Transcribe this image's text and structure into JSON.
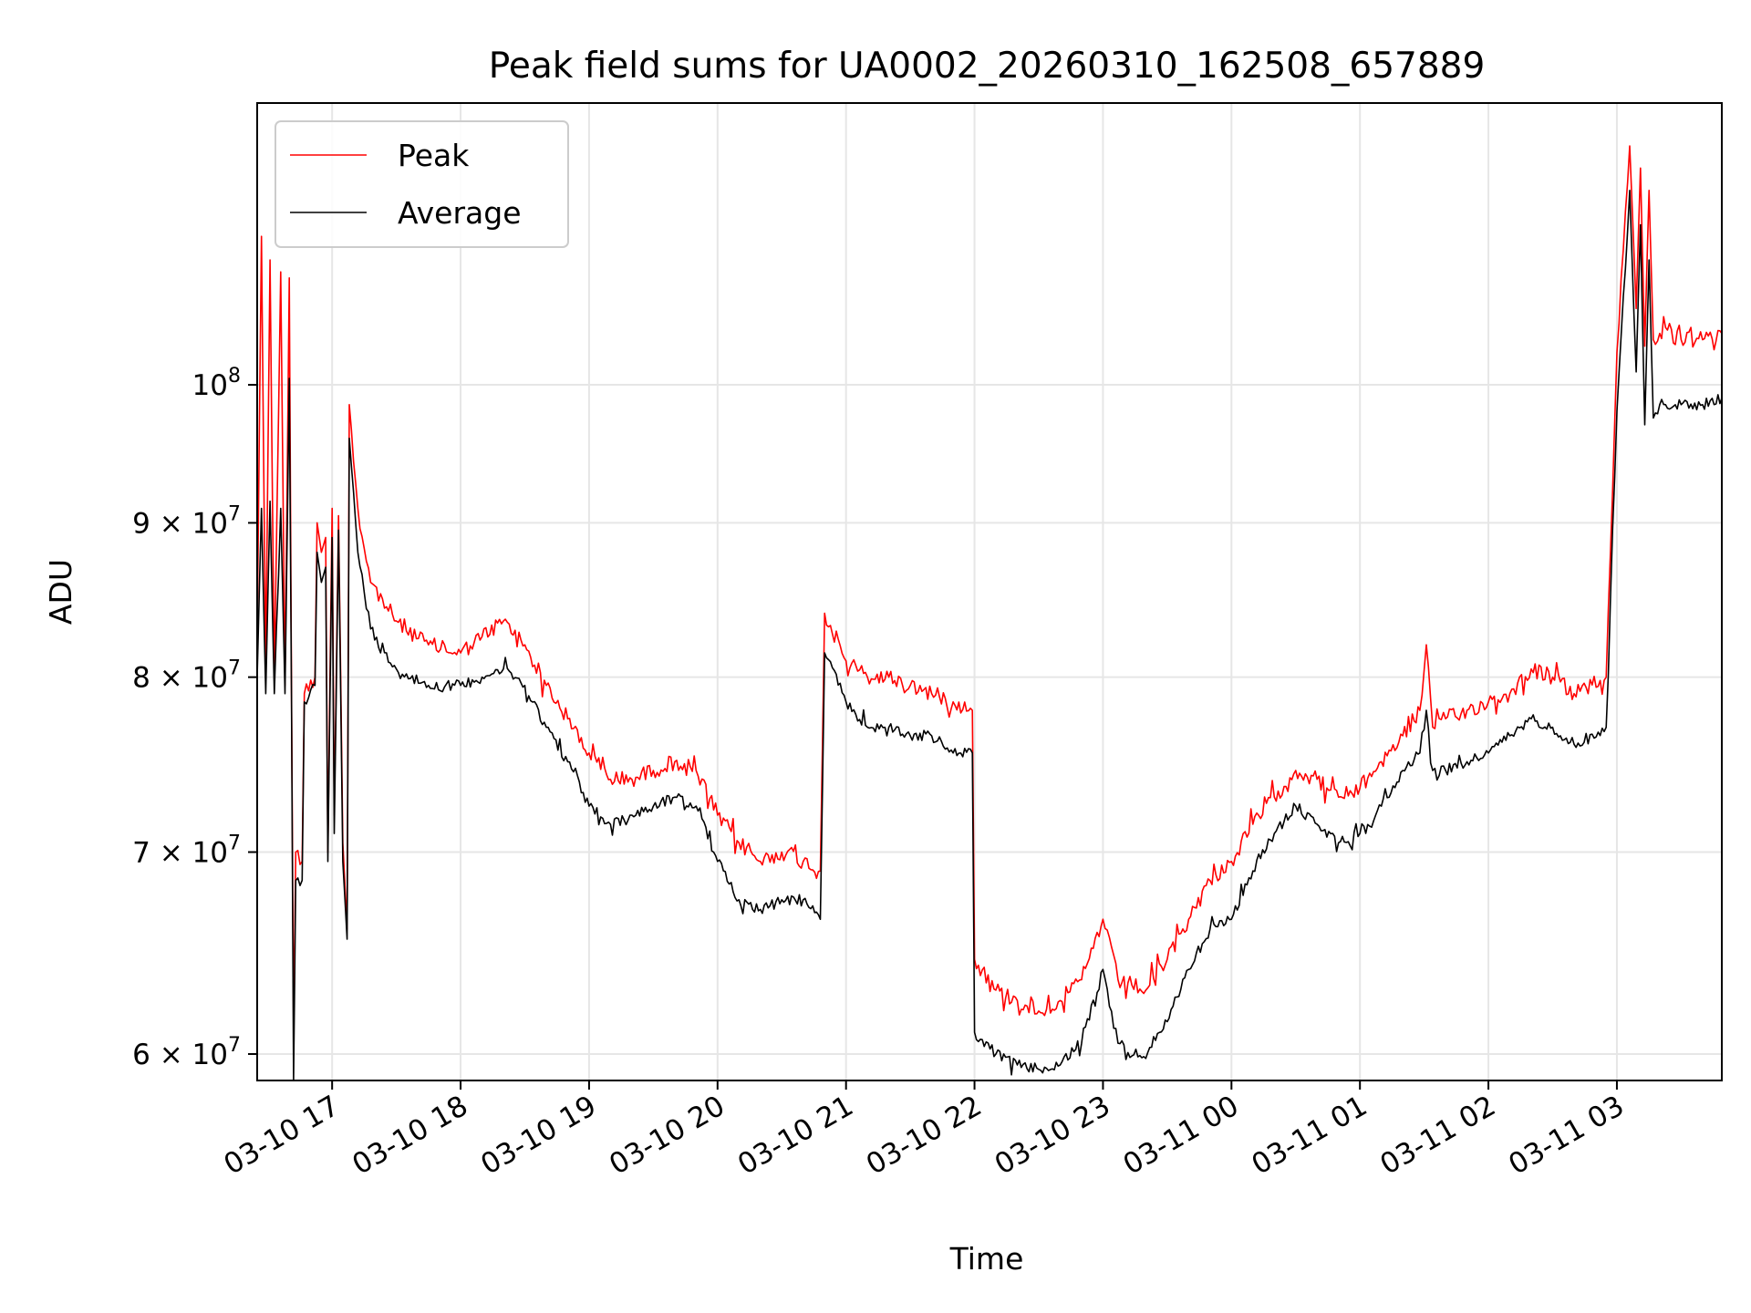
{
  "chart_data": {
    "type": "line",
    "title": "Peak field sums for UA0002_20260310_162508_657889",
    "xlabel": "Time",
    "ylabel": "ADU",
    "y_scale": "log",
    "ylim": [
      58800000,
      124000000
    ],
    "xlim": [
      "2026-03-10 16:25",
      "2026-03-11 03:49"
    ],
    "grid": true,
    "legend": {
      "placement": "upper-left"
    },
    "x_ticks": [
      {
        "value": "2026-03-10 17:00",
        "label": "03-10 17"
      },
      {
        "value": "2026-03-10 18:00",
        "label": "03-10 18"
      },
      {
        "value": "2026-03-10 19:00",
        "label": "03-10 19"
      },
      {
        "value": "2026-03-10 20:00",
        "label": "03-10 20"
      },
      {
        "value": "2026-03-10 21:00",
        "label": "03-10 21"
      },
      {
        "value": "2026-03-10 22:00",
        "label": "03-10 22"
      },
      {
        "value": "2026-03-10 23:00",
        "label": "03-10 23"
      },
      {
        "value": "2026-03-11 00:00",
        "label": "03-11 00"
      },
      {
        "value": "2026-03-11 01:00",
        "label": "03-11 01"
      },
      {
        "value": "2026-03-11 02:00",
        "label": "03-11 02"
      },
      {
        "value": "2026-03-11 03:00",
        "label": "03-11 03"
      }
    ],
    "y_ticks": [
      {
        "value": 60000000,
        "mantissa": "6",
        "exponent": "7"
      },
      {
        "value": 70000000,
        "mantissa": "7",
        "exponent": "7"
      },
      {
        "value": 80000000,
        "mantissa": "8",
        "exponent": "7"
      },
      {
        "value": 90000000,
        "mantissa": "9",
        "exponent": "7"
      },
      {
        "value": 100000000,
        "mantissa": "",
        "exponent": "8"
      }
    ],
    "series": [
      {
        "name": "Peak",
        "color": "#ff0000",
        "points": [
          [
            "2026-03-10 16:25",
            82500000
          ],
          [
            "2026-03-10 16:27",
            112000000
          ],
          [
            "2026-03-10 16:29",
            80500000
          ],
          [
            "2026-03-10 16:31",
            110000000
          ],
          [
            "2026-03-10 16:33",
            80000000
          ],
          [
            "2026-03-10 16:36",
            109000000
          ],
          [
            "2026-03-10 16:38",
            79500000
          ],
          [
            "2026-03-10 16:40",
            108500000
          ],
          [
            "2026-03-10 16:41",
            79500000
          ],
          [
            "2026-03-10 16:42",
            61000000
          ],
          [
            "2026-03-10 16:43",
            70000000
          ],
          [
            "2026-03-10 16:46",
            69500000
          ],
          [
            "2026-03-10 16:47",
            79000000
          ],
          [
            "2026-03-10 16:52",
            80000000
          ],
          [
            "2026-03-10 16:53",
            90000000
          ],
          [
            "2026-03-10 16:55",
            88000000
          ],
          [
            "2026-03-10 16:57",
            89000000
          ],
          [
            "2026-03-10 16:58",
            70000000
          ],
          [
            "2026-03-10 17:00",
            91000000
          ],
          [
            "2026-03-10 17:01",
            72000000
          ],
          [
            "2026-03-10 17:03",
            90500000
          ],
          [
            "2026-03-10 17:05",
            70500000
          ],
          [
            "2026-03-10 17:07",
            66000000
          ],
          [
            "2026-03-10 17:08",
            98500000
          ],
          [
            "2026-03-10 17:12",
            91000000
          ],
          [
            "2026-03-10 17:18",
            86000000
          ],
          [
            "2026-03-10 17:30",
            83500000
          ],
          [
            "2026-03-10 17:45",
            82000000
          ],
          [
            "2026-03-10 18:00",
            81500000
          ],
          [
            "2026-03-10 18:10",
            82500000
          ],
          [
            "2026-03-10 18:20",
            83500000
          ],
          [
            "2026-03-10 18:30",
            82000000
          ],
          [
            "2026-03-10 18:40",
            79500000
          ],
          [
            "2026-03-10 18:50",
            77500000
          ],
          [
            "2026-03-10 19:00",
            75500000
          ],
          [
            "2026-03-10 19:10",
            74000000
          ],
          [
            "2026-03-10 19:20",
            74000000
          ],
          [
            "2026-03-10 19:30",
            74500000
          ],
          [
            "2026-03-10 19:40",
            75000000
          ],
          [
            "2026-03-10 19:50",
            74500000
          ],
          [
            "2026-03-10 20:00",
            72000000
          ],
          [
            "2026-03-10 20:10",
            70500000
          ],
          [
            "2026-03-10 20:20",
            69500000
          ],
          [
            "2026-03-10 20:30",
            70000000
          ],
          [
            "2026-03-10 20:40",
            69500000
          ],
          [
            "2026-03-10 20:48",
            69000000
          ],
          [
            "2026-03-10 20:50",
            84000000
          ],
          [
            "2026-03-10 21:00",
            81000000
          ],
          [
            "2026-03-10 21:10",
            80000000
          ],
          [
            "2026-03-10 21:20",
            80000000
          ],
          [
            "2026-03-10 21:30",
            79500000
          ],
          [
            "2026-03-10 21:40",
            79000000
          ],
          [
            "2026-03-10 21:50",
            78500000
          ],
          [
            "2026-03-10 21:59",
            78000000
          ],
          [
            "2026-03-10 22:00",
            64500000
          ],
          [
            "2026-03-10 22:10",
            63000000
          ],
          [
            "2026-03-10 22:20",
            62500000
          ],
          [
            "2026-03-10 22:30",
            62000000
          ],
          [
            "2026-03-10 22:40",
            62500000
          ],
          [
            "2026-03-10 22:50",
            63500000
          ],
          [
            "2026-03-10 23:00",
            66500000
          ],
          [
            "2026-03-10 23:07",
            63500000
          ],
          [
            "2026-03-10 23:20",
            63000000
          ],
          [
            "2026-03-10 23:30",
            64500000
          ],
          [
            "2026-03-10 23:40",
            66500000
          ],
          [
            "2026-03-10 23:50",
            68500000
          ],
          [
            "2026-03-11 00:00",
            69500000
          ],
          [
            "2026-03-11 00:10",
            71500000
          ],
          [
            "2026-03-11 00:20",
            73000000
          ],
          [
            "2026-03-11 00:30",
            74500000
          ],
          [
            "2026-03-11 00:40",
            74000000
          ],
          [
            "2026-03-11 00:50",
            73000000
          ],
          [
            "2026-03-11 01:00",
            73500000
          ],
          [
            "2026-03-11 01:10",
            75000000
          ],
          [
            "2026-03-11 01:20",
            76500000
          ],
          [
            "2026-03-11 01:28",
            78000000
          ],
          [
            "2026-03-11 01:31",
            82000000
          ],
          [
            "2026-03-11 01:34",
            77000000
          ],
          [
            "2026-03-11 01:40",
            77500000
          ],
          [
            "2026-03-11 01:50",
            78000000
          ],
          [
            "2026-03-11 02:00",
            78500000
          ],
          [
            "2026-03-11 02:10",
            79000000
          ],
          [
            "2026-03-11 02:20",
            80500000
          ],
          [
            "2026-03-11 02:30",
            80000000
          ],
          [
            "2026-03-11 02:40",
            79000000
          ],
          [
            "2026-03-11 02:55",
            80000000
          ],
          [
            "2026-03-11 03:00",
            102500000
          ],
          [
            "2026-03-11 03:06",
            120000000
          ],
          [
            "2026-03-11 03:09",
            106000000
          ],
          [
            "2026-03-11 03:11",
            118000000
          ],
          [
            "2026-03-11 03:13",
            103000000
          ],
          [
            "2026-03-11 03:15",
            116000000
          ],
          [
            "2026-03-11 03:17",
            103500000
          ],
          [
            "2026-03-11 03:20",
            104000000
          ],
          [
            "2026-03-11 03:30",
            103500000
          ],
          [
            "2026-03-11 03:40",
            103500000
          ],
          [
            "2026-03-11 03:49",
            104000000
          ]
        ]
      },
      {
        "name": "Average",
        "color": "#000000",
        "points": [
          [
            "2026-03-10 16:25",
            80000000
          ],
          [
            "2026-03-10 16:27",
            91000000
          ],
          [
            "2026-03-10 16:29",
            79000000
          ],
          [
            "2026-03-10 16:31",
            91500000
          ],
          [
            "2026-03-10 16:33",
            79000000
          ],
          [
            "2026-03-10 16:36",
            91000000
          ],
          [
            "2026-03-10 16:38",
            79000000
          ],
          [
            "2026-03-10 16:40",
            100500000
          ],
          [
            "2026-03-10 16:41",
            79000000
          ],
          [
            "2026-03-10 16:42",
            58800000
          ],
          [
            "2026-03-10 16:43",
            68500000
          ],
          [
            "2026-03-10 16:46",
            68500000
          ],
          [
            "2026-03-10 16:47",
            78500000
          ],
          [
            "2026-03-10 16:52",
            79500000
          ],
          [
            "2026-03-10 16:53",
            88000000
          ],
          [
            "2026-03-10 16:55",
            86000000
          ],
          [
            "2026-03-10 16:57",
            87000000
          ],
          [
            "2026-03-10 16:58",
            69500000
          ],
          [
            "2026-03-10 17:00",
            89000000
          ],
          [
            "2026-03-10 17:01",
            71000000
          ],
          [
            "2026-03-10 17:03",
            89500000
          ],
          [
            "2026-03-10 17:05",
            69500000
          ],
          [
            "2026-03-10 17:07",
            65500000
          ],
          [
            "2026-03-10 17:08",
            96000000
          ],
          [
            "2026-03-10 17:12",
            88000000
          ],
          [
            "2026-03-10 17:18",
            83000000
          ],
          [
            "2026-03-10 17:30",
            80500000
          ],
          [
            "2026-03-10 17:45",
            79500000
          ],
          [
            "2026-03-10 18:00",
            79500000
          ],
          [
            "2026-03-10 18:10",
            80000000
          ],
          [
            "2026-03-10 18:20",
            80500000
          ],
          [
            "2026-03-10 18:30",
            79500000
          ],
          [
            "2026-03-10 18:40",
            77000000
          ],
          [
            "2026-03-10 18:50",
            75000000
          ],
          [
            "2026-03-10 19:00",
            72500000
          ],
          [
            "2026-03-10 19:10",
            71500000
          ],
          [
            "2026-03-10 19:20",
            72000000
          ],
          [
            "2026-03-10 19:30",
            72500000
          ],
          [
            "2026-03-10 19:40",
            73000000
          ],
          [
            "2026-03-10 19:50",
            72500000
          ],
          [
            "2026-03-10 20:00",
            69500000
          ],
          [
            "2026-03-10 20:10",
            67500000
          ],
          [
            "2026-03-10 20:20",
            67000000
          ],
          [
            "2026-03-10 20:30",
            67500000
          ],
          [
            "2026-03-10 20:40",
            67500000
          ],
          [
            "2026-03-10 20:48",
            66500000
          ],
          [
            "2026-03-10 20:50",
            81500000
          ],
          [
            "2026-03-10 21:00",
            78500000
          ],
          [
            "2026-03-10 21:10",
            77000000
          ],
          [
            "2026-03-10 21:20",
            77000000
          ],
          [
            "2026-03-10 21:30",
            76500000
          ],
          [
            "2026-03-10 21:40",
            76500000
          ],
          [
            "2026-03-10 21:50",
            75500000
          ],
          [
            "2026-03-10 21:59",
            75500000
          ],
          [
            "2026-03-10 22:00",
            61000000
          ],
          [
            "2026-03-10 22:10",
            60000000
          ],
          [
            "2026-03-10 22:20",
            59500000
          ],
          [
            "2026-03-10 22:30",
            59300000
          ],
          [
            "2026-03-10 22:40",
            59500000
          ],
          [
            "2026-03-10 22:50",
            60500000
          ],
          [
            "2026-03-10 23:00",
            64000000
          ],
          [
            "2026-03-10 23:07",
            60500000
          ],
          [
            "2026-03-10 23:20",
            59800000
          ],
          [
            "2026-03-10 23:30",
            61500000
          ],
          [
            "2026-03-10 23:40",
            64000000
          ],
          [
            "2026-03-10 23:50",
            66000000
          ],
          [
            "2026-03-11 00:00",
            66500000
          ],
          [
            "2026-03-11 00:10",
            69000000
          ],
          [
            "2026-03-11 00:20",
            71000000
          ],
          [
            "2026-03-11 00:30",
            72500000
          ],
          [
            "2026-03-11 00:40",
            71500000
          ],
          [
            "2026-03-11 00:50",
            70500000
          ],
          [
            "2026-03-11 01:00",
            71000000
          ],
          [
            "2026-03-11 01:10",
            72500000
          ],
          [
            "2026-03-11 01:20",
            74500000
          ],
          [
            "2026-03-11 01:28",
            75500000
          ],
          [
            "2026-03-11 01:31",
            78000000
          ],
          [
            "2026-03-11 01:34",
            74500000
          ],
          [
            "2026-03-11 01:40",
            74500000
          ],
          [
            "2026-03-11 01:50",
            75000000
          ],
          [
            "2026-03-11 02:00",
            75500000
          ],
          [
            "2026-03-11 02:10",
            76500000
          ],
          [
            "2026-03-11 02:20",
            77500000
          ],
          [
            "2026-03-11 02:30",
            77000000
          ],
          [
            "2026-03-11 02:40",
            76000000
          ],
          [
            "2026-03-11 02:55",
            77000000
          ],
          [
            "2026-03-11 03:00",
            98000000
          ],
          [
            "2026-03-11 03:06",
            116000000
          ],
          [
            "2026-03-11 03:09",
            101000000
          ],
          [
            "2026-03-11 03:11",
            113000000
          ],
          [
            "2026-03-11 03:13",
            97000000
          ],
          [
            "2026-03-11 03:15",
            110000000
          ],
          [
            "2026-03-11 03:17",
            97500000
          ],
          [
            "2026-03-11 03:20",
            98500000
          ],
          [
            "2026-03-11 03:30",
            98500000
          ],
          [
            "2026-03-11 03:40",
            98500000
          ],
          [
            "2026-03-11 03:49",
            99000000
          ]
        ]
      }
    ]
  }
}
